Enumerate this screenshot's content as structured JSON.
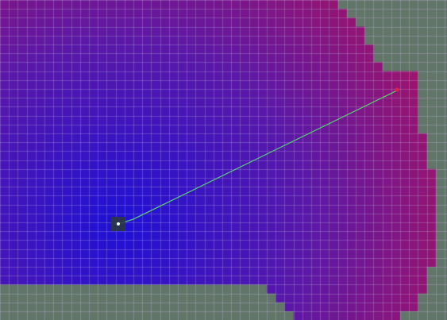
{
  "costmap": {
    "cell_state_names": [
      "free",
      "unknown"
    ],
    "colors": {
      "unknown": "#627569",
      "near": "#1E10D6",
      "mid": "#5A18A8",
      "far": "#B0135A",
      "grid_line": "#CFC8E8",
      "path": "#5BC47A",
      "robot_box": "#2B3A38",
      "robot_dot": "#F0FFF0",
      "goal": "#E0204A"
    },
    "icons": {
      "robot": "robot-marker-icon",
      "goal": "goal-marker-icon"
    }
  }
}
